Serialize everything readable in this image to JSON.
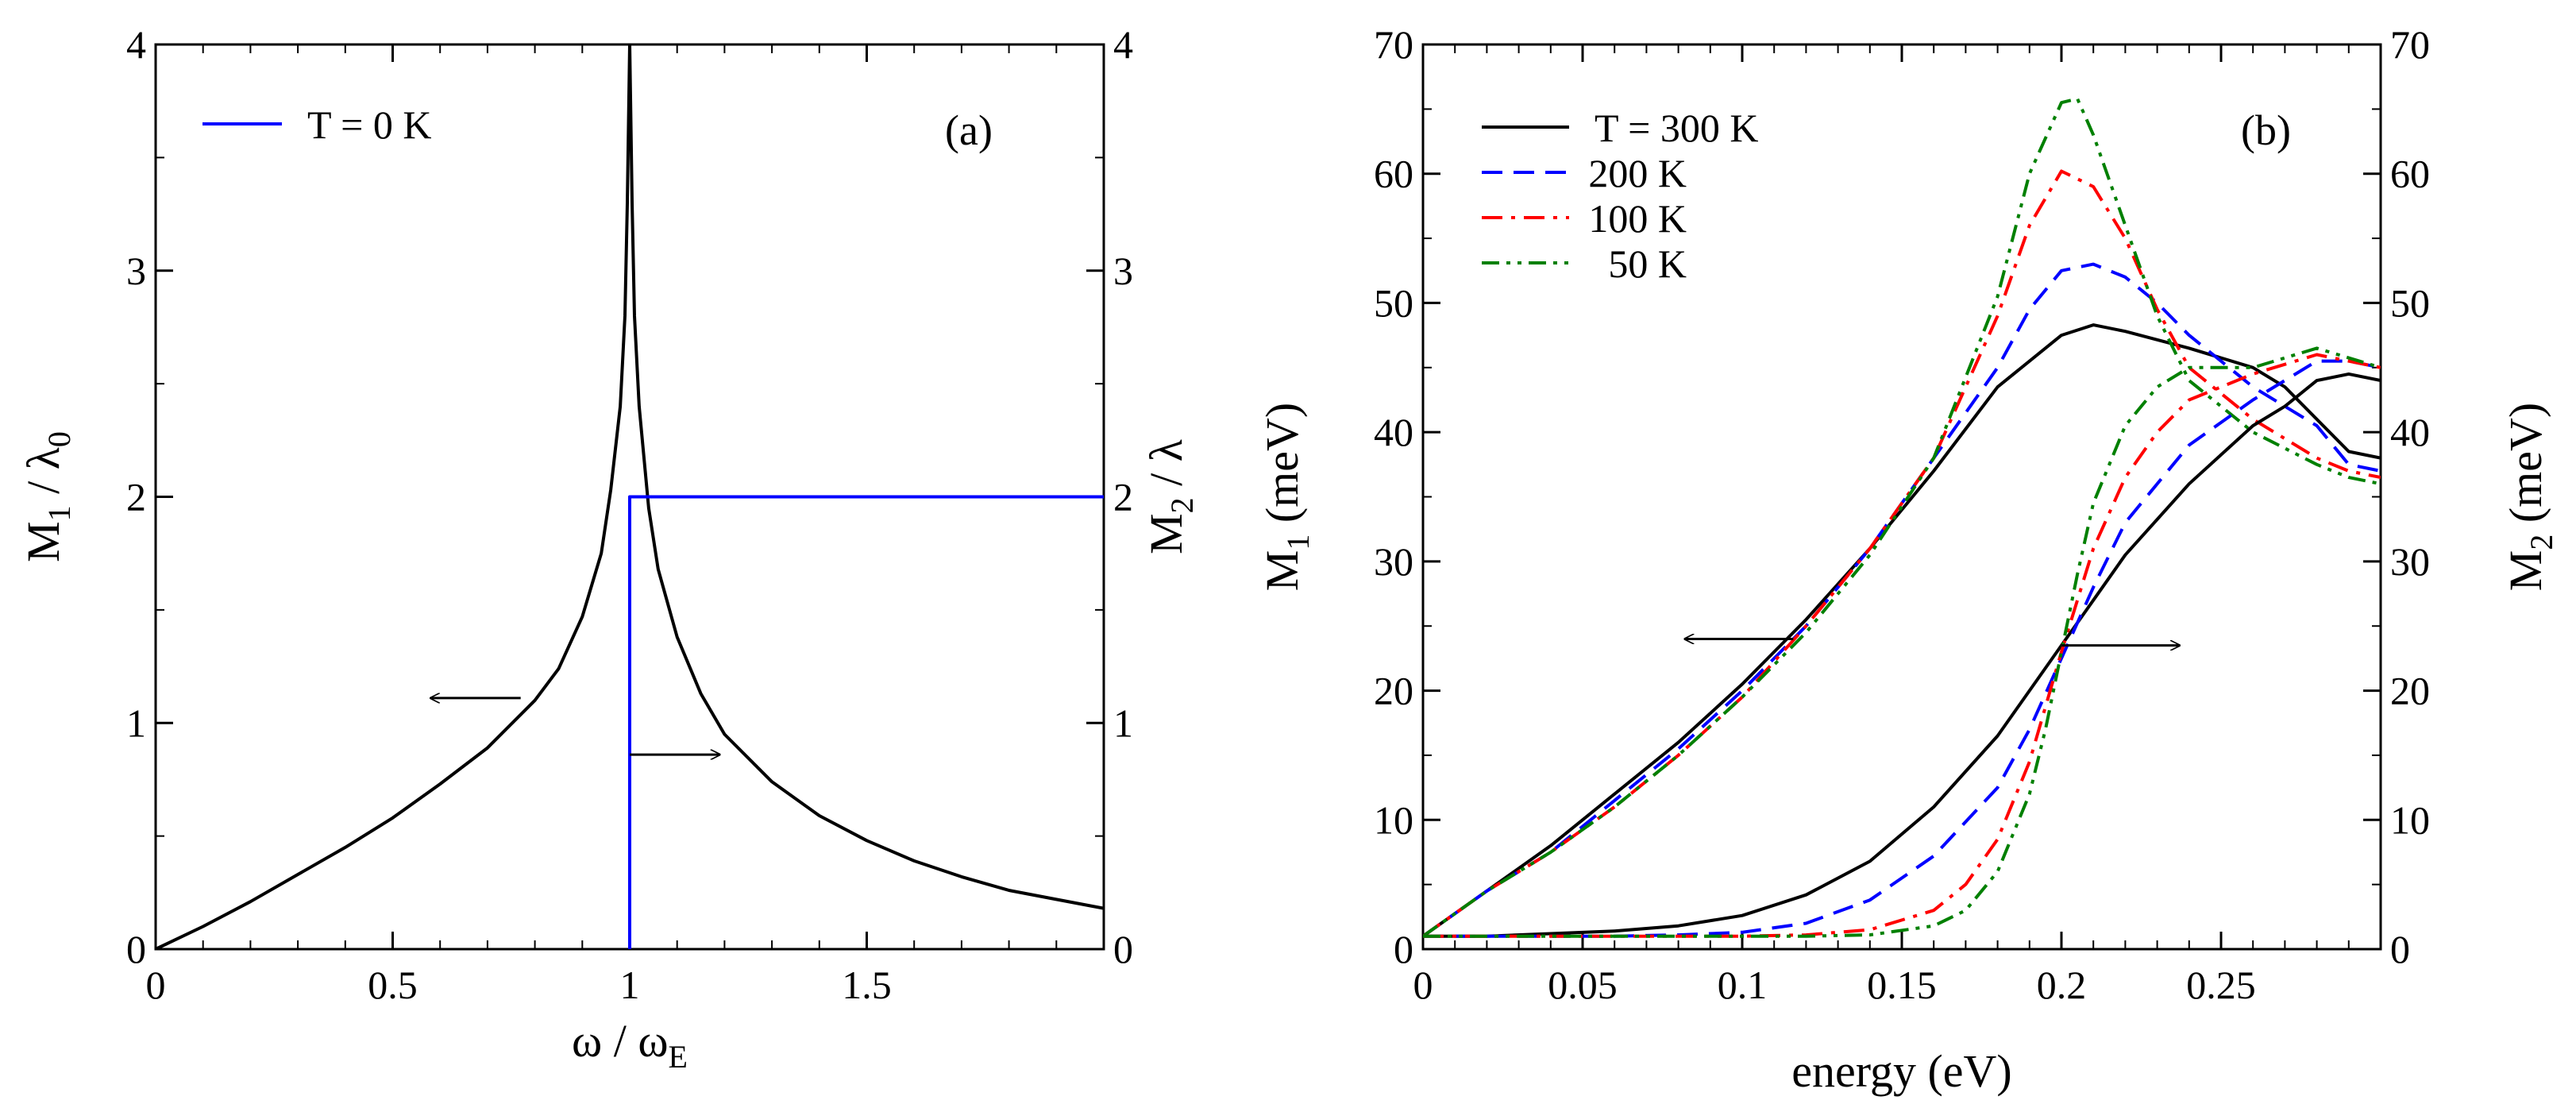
{
  "chart_data": [
    {
      "panel": "(a)",
      "type": "line",
      "title": "",
      "xlabel_main": "ω / ω",
      "xlabel_sub": "E",
      "ylabel_left_main": "M",
      "ylabel_left_sub": "1",
      "ylabel_left_tail": " / λ",
      "ylabel_left_tail_sub": "0",
      "ylabel_right_main": "M",
      "ylabel_right_sub": "2",
      "ylabel_right_tail": " / λ",
      "xlim": [
        0,
        2
      ],
      "ylim": [
        0,
        4
      ],
      "x_ticks": [
        0,
        0.5,
        1,
        1.5
      ],
      "x_tick_labels": [
        "0",
        "0.5",
        "1",
        "1.5"
      ],
      "y_ticks": [
        0,
        1,
        2,
        3,
        4
      ],
      "y_tick_labels": [
        "0",
        "1",
        "2",
        "3",
        "4"
      ],
      "legend": {
        "position": "top-left",
        "entries": [
          {
            "label": "T = 0 K",
            "color": "#0000ff",
            "dash": "solid"
          }
        ]
      },
      "series": [
        {
          "name": "M1 / λ0",
          "color": "#000000",
          "dash": "solid",
          "axis": "left",
          "x": [
            0,
            0.1,
            0.2,
            0.3,
            0.4,
            0.5,
            0.6,
            0.7,
            0.8,
            0.85,
            0.9,
            0.94,
            0.96,
            0.98,
            0.99,
            0.995,
            1.0,
            1.005,
            1.01,
            1.02,
            1.04,
            1.06,
            1.1,
            1.15,
            1.2,
            1.3,
            1.4,
            1.5,
            1.6,
            1.7,
            1.8,
            1.9,
            2.0
          ],
          "y": [
            0,
            0.1,
            0.21,
            0.33,
            0.45,
            0.58,
            0.73,
            0.89,
            1.1,
            1.24,
            1.47,
            1.75,
            2.03,
            2.4,
            2.8,
            3.3,
            4.0,
            3.3,
            2.8,
            2.4,
            1.95,
            1.68,
            1.38,
            1.13,
            0.95,
            0.74,
            0.59,
            0.48,
            0.39,
            0.32,
            0.26,
            0.22,
            0.18
          ]
        },
        {
          "name": "M2 / λ, T = 0 K",
          "color": "#0000ff",
          "dash": "solid",
          "axis": "right",
          "x": [
            1.0,
            1.0,
            2.0
          ],
          "y": [
            0,
            2,
            2
          ]
        }
      ],
      "annotations": [
        {
          "type": "arrow",
          "direction": "left",
          "axis": "left",
          "from": [
            0.77,
            1.11
          ],
          "to": [
            0.58,
            1.11
          ]
        },
        {
          "type": "arrow",
          "direction": "right",
          "axis": "right",
          "from": [
            1.0,
            0.86
          ],
          "to": [
            1.19,
            0.86
          ]
        }
      ]
    },
    {
      "panel": "(b)",
      "type": "line",
      "title": "",
      "xlabel": "energy (eV)",
      "ylabel_left_main": "M",
      "ylabel_left_sub": "1",
      "ylabel_left_tail": "  (meV)",
      "ylabel_right_main": "M",
      "ylabel_right_sub": "2",
      "ylabel_right_tail": "  (meV)",
      "xlim": [
        0,
        0.3
      ],
      "ylim": [
        0,
        70
      ],
      "x_ticks": [
        0,
        0.05,
        0.1,
        0.15,
        0.2,
        0.25
      ],
      "x_tick_labels": [
        "0",
        "0.05",
        "0.1",
        "0.15",
        "0.2",
        "0.25"
      ],
      "y_ticks": [
        0,
        10,
        20,
        30,
        40,
        50,
        60,
        70
      ],
      "y_tick_labels": [
        "0",
        "10",
        "20",
        "30",
        "40",
        "50",
        "60",
        "70"
      ],
      "legend": {
        "position": "top-left",
        "entries": [
          {
            "label": "T = 300 K",
            "color": "#000000",
            "dash": "solid"
          },
          {
            "label": "200 K",
            "color": "#0000ff",
            "dash": "dashed"
          },
          {
            "label": "100 K",
            "color": "#ff0000",
            "dash": "dashdot"
          },
          {
            "label": "50 K",
            "color": "#008000",
            "dash": "dashdotdot"
          }
        ]
      },
      "series": [
        {
          "name": "M1, T = 300 K",
          "color": "#000000",
          "dash": "solid",
          "axis": "left",
          "x": [
            0,
            0.02,
            0.04,
            0.06,
            0.08,
            0.1,
            0.12,
            0.14,
            0.16,
            0.18,
            0.2,
            0.21,
            0.22,
            0.24,
            0.26,
            0.27,
            0.28,
            0.29,
            0.3
          ],
          "y": [
            1,
            4.5,
            8,
            12,
            16,
            20.5,
            25.5,
            31,
            37,
            43.5,
            47.5,
            48.3,
            47.8,
            46.5,
            45,
            43.5,
            41,
            38.5,
            38
          ]
        },
        {
          "name": "M1, 200 K",
          "color": "#0000ff",
          "dash": "dashed",
          "axis": "left",
          "x": [
            0,
            0.02,
            0.04,
            0.06,
            0.08,
            0.1,
            0.12,
            0.14,
            0.16,
            0.18,
            0.19,
            0.2,
            0.21,
            0.22,
            0.23,
            0.24,
            0.26,
            0.28,
            0.29,
            0.3
          ],
          "y": [
            1,
            4.5,
            7.5,
            11.5,
            15.5,
            20,
            25,
            31,
            38,
            45,
            49.5,
            52.5,
            53,
            52,
            50,
            47.5,
            43.5,
            40.5,
            37.5,
            37
          ]
        },
        {
          "name": "M1, 100 K",
          "color": "#ff0000",
          "dash": "dashdot",
          "axis": "left",
          "x": [
            0,
            0.02,
            0.04,
            0.06,
            0.08,
            0.1,
            0.12,
            0.14,
            0.16,
            0.18,
            0.19,
            0.2,
            0.21,
            0.22,
            0.23,
            0.24,
            0.26,
            0.28,
            0.29,
            0.3
          ],
          "y": [
            1,
            4.5,
            7.5,
            11,
            15,
            19.5,
            25,
            31,
            38,
            49,
            56,
            60.2,
            59,
            55,
            49.5,
            45,
            41,
            38,
            37,
            36.5
          ]
        },
        {
          "name": "M1, 50 K",
          "color": "#008000",
          "dash": "dashdotdot",
          "axis": "left",
          "x": [
            0,
            0.02,
            0.04,
            0.06,
            0.08,
            0.1,
            0.12,
            0.14,
            0.16,
            0.18,
            0.19,
            0.2,
            0.205,
            0.21,
            0.22,
            0.23,
            0.24,
            0.26,
            0.28,
            0.29,
            0.3
          ],
          "y": [
            1,
            4.5,
            7.5,
            11,
            15,
            19.5,
            24.5,
            30.5,
            38,
            50.5,
            60,
            65.5,
            65.8,
            63,
            56,
            49,
            44,
            40,
            37.5,
            36.5,
            36
          ]
        },
        {
          "name": "M2, T = 300 K",
          "color": "#000000",
          "dash": "solid",
          "axis": "right",
          "x": [
            0,
            0.02,
            0.04,
            0.06,
            0.08,
            0.1,
            0.12,
            0.14,
            0.16,
            0.18,
            0.2,
            0.21,
            0.22,
            0.24,
            0.26,
            0.27,
            0.28,
            0.29,
            0.3
          ],
          "y": [
            1,
            1,
            1.2,
            1.4,
            1.8,
            2.6,
            4.2,
            6.8,
            11,
            16.5,
            23.5,
            27,
            30.5,
            36,
            40.5,
            42,
            44,
            44.5,
            44
          ]
        },
        {
          "name": "M2, 200 K",
          "color": "#0000ff",
          "dash": "dashed",
          "axis": "right",
          "x": [
            0,
            0.02,
            0.04,
            0.06,
            0.08,
            0.1,
            0.12,
            0.14,
            0.16,
            0.18,
            0.19,
            0.2,
            0.21,
            0.22,
            0.24,
            0.26,
            0.28,
            0.29,
            0.3
          ],
          "y": [
            1,
            1,
            1,
            1,
            1.1,
            1.3,
            2,
            3.8,
            7.2,
            12.5,
            17,
            22.5,
            28,
            33,
            39,
            42.5,
            45.5,
            45.5,
            45
          ]
        },
        {
          "name": "M2, 100 K",
          "color": "#ff0000",
          "dash": "dashdot",
          "axis": "right",
          "x": [
            0,
            0.02,
            0.04,
            0.06,
            0.08,
            0.1,
            0.12,
            0.14,
            0.16,
            0.17,
            0.18,
            0.19,
            0.2,
            0.21,
            0.22,
            0.23,
            0.24,
            0.26,
            0.28,
            0.3
          ],
          "y": [
            1,
            1,
            1,
            1,
            1,
            1,
            1.1,
            1.5,
            3,
            5,
            8.5,
            14.5,
            23,
            31,
            36.5,
            40,
            42.5,
            44.5,
            46,
            45
          ]
        },
        {
          "name": "M2, 50 K",
          "color": "#008000",
          "dash": "dashdotdot",
          "axis": "right",
          "x": [
            0,
            0.02,
            0.04,
            0.06,
            0.08,
            0.1,
            0.12,
            0.14,
            0.16,
            0.17,
            0.18,
            0.19,
            0.195,
            0.2,
            0.205,
            0.21,
            0.22,
            0.23,
            0.24,
            0.26,
            0.28,
            0.3
          ],
          "y": [
            1,
            1,
            1,
            1,
            1,
            1,
            1,
            1.1,
            1.8,
            3,
            6,
            12,
            17,
            23,
            29,
            34.5,
            40.5,
            43.5,
            45,
            45,
            46.5,
            45
          ]
        }
      ],
      "annotations": [
        {
          "type": "arrow",
          "direction": "left",
          "axis": "left",
          "from": [
            0.116,
            24
          ],
          "to": [
            0.082,
            24
          ]
        },
        {
          "type": "arrow",
          "direction": "right",
          "axis": "right",
          "from": [
            0.2,
            23.5
          ],
          "to": [
            0.237,
            23.5
          ]
        }
      ]
    }
  ]
}
